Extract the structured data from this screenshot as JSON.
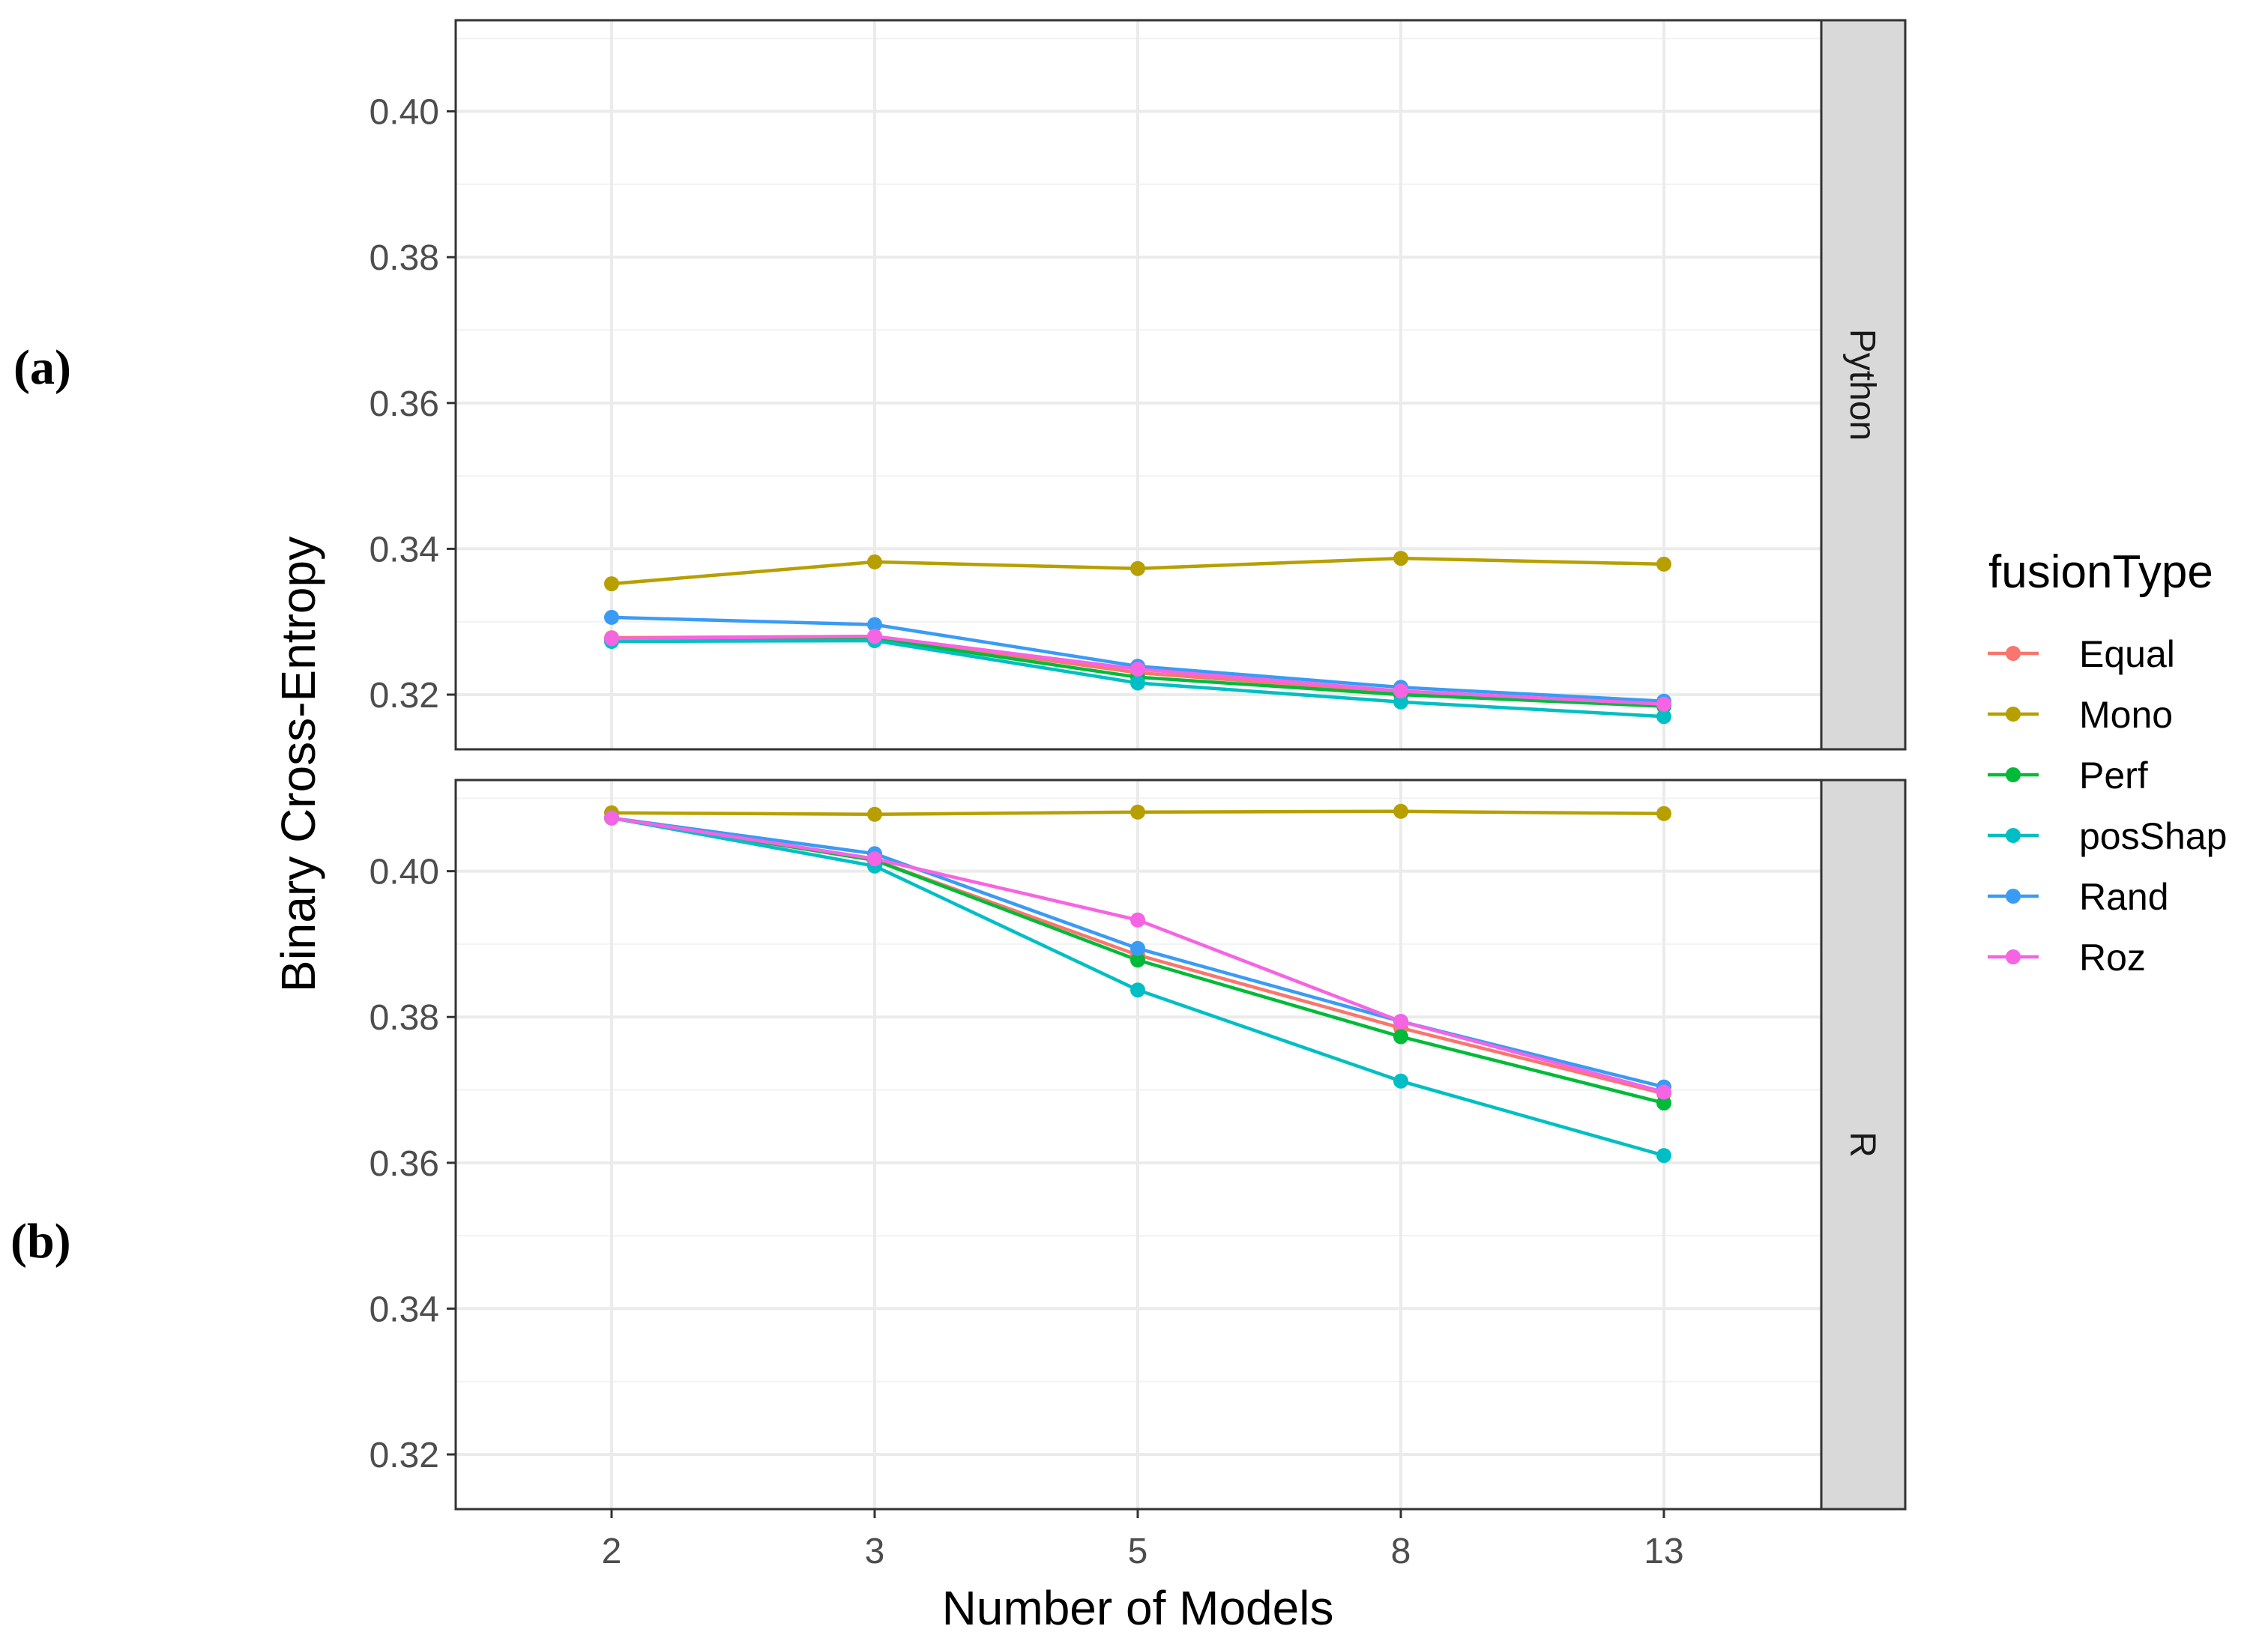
{
  "chart_data": {
    "type": "line",
    "xlabel": "Number of Models",
    "ylabel": "Binary Cross-Entropy",
    "categories": [
      "2",
      "3",
      "5",
      "8",
      "13"
    ],
    "y_ticks": [
      "0.32",
      "0.34",
      "0.36",
      "0.38",
      "0.40"
    ],
    "legend_title": "fusionType",
    "legend_position": "right",
    "grid": true,
    "series_meta": [
      {
        "name": "Equal",
        "color": "#F8766D"
      },
      {
        "name": "Mono",
        "color": "#B79F00"
      },
      {
        "name": "Perf",
        "color": "#00BA38"
      },
      {
        "name": "posShap",
        "color": "#00BFC4"
      },
      {
        "name": "Rand",
        "color": "#3A9BF5"
      },
      {
        "name": "Roz",
        "color": "#F564E3"
      }
    ],
    "panels": [
      {
        "tag": "(a)",
        "strip": "Python",
        "ylim": [
          0.3125,
          0.4125
        ],
        "series": [
          {
            "name": "Equal",
            "values": [
              0.3278,
              0.328,
              0.323,
              0.3203,
              0.3186
            ]
          },
          {
            "name": "Mono",
            "values": [
              0.3352,
              0.3382,
              0.3373,
              0.3387,
              0.3379
            ]
          },
          {
            "name": "Perf",
            "values": [
              0.3275,
              0.3277,
              0.3224,
              0.32,
              0.3184
            ]
          },
          {
            "name": "posShap",
            "values": [
              0.3273,
              0.3274,
              0.3216,
              0.319,
              0.317
            ]
          },
          {
            "name": "Rand",
            "values": [
              0.3306,
              0.3296,
              0.3239,
              0.321,
              0.3191
            ]
          },
          {
            "name": "Roz",
            "values": [
              0.3277,
              0.328,
              0.3235,
              0.3205,
              0.3187
            ]
          }
        ]
      },
      {
        "tag": "(b)",
        "strip": "R",
        "ylim": [
          0.3125,
          0.4125
        ],
        "series": [
          {
            "name": "Equal",
            "values": [
              0.4073,
              0.4015,
              0.3885,
              0.3785,
              0.3695
            ]
          },
          {
            "name": "Mono",
            "values": [
              0.408,
              0.4078,
              0.4081,
              0.4082,
              0.4079
            ]
          },
          {
            "name": "Perf",
            "values": [
              0.4073,
              0.4015,
              0.3878,
              0.3773,
              0.3682
            ]
          },
          {
            "name": "posShap",
            "values": [
              0.4073,
              0.4007,
              0.3837,
              0.3712,
              0.361
            ]
          },
          {
            "name": "Rand",
            "values": [
              0.4073,
              0.4024,
              0.3894,
              0.3794,
              0.3704
            ]
          },
          {
            "name": "Roz",
            "values": [
              0.4073,
              0.4017,
              0.3933,
              0.3794,
              0.3697
            ]
          }
        ]
      }
    ]
  }
}
